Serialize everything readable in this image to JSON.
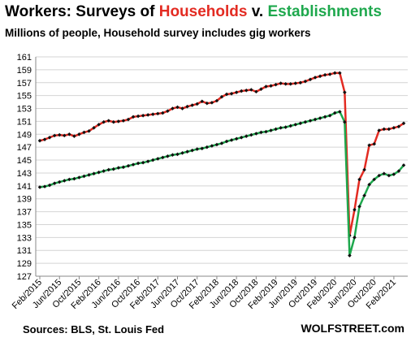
{
  "title": {
    "part1": "Workers: Surveys of ",
    "part2": "Households",
    "part3": " v. ",
    "part4": "Establishments"
  },
  "subtitle": "Millions of people, Household survey includes gig workers",
  "sources": "Sources: BLS, St. Louis Fed",
  "watermark": "WOLFSTREET.com",
  "colors": {
    "households": "#e32b22",
    "establishments": "#1ea84d",
    "title_red": "#e32b22",
    "title_green": "#1ea84d",
    "marker": "#111111",
    "grid": "#d4d4d4"
  },
  "chart_data": {
    "type": "line",
    "y_ticks": [
      127,
      129,
      131,
      133,
      135,
      137,
      139,
      141,
      143,
      145,
      147,
      149,
      151,
      153,
      155,
      157,
      159,
      161
    ],
    "ylim": [
      127,
      161
    ],
    "x_ticks": [
      {
        "label": "Feb/2015",
        "index": 0
      },
      {
        "label": "Jun/2015",
        "index": 4
      },
      {
        "label": "Oct/2015",
        "index": 8
      },
      {
        "label": "Feb/2016",
        "index": 12
      },
      {
        "label": "Jun/2016",
        "index": 16
      },
      {
        "label": "Oct/2016",
        "index": 20
      },
      {
        "label": "Feb/2017",
        "index": 24
      },
      {
        "label": "Jun/2017",
        "index": 28
      },
      {
        "label": "Oct/2017",
        "index": 32
      },
      {
        "label": "Feb/2018",
        "index": 36
      },
      {
        "label": "Jun/2018",
        "index": 40
      },
      {
        "label": "Oct/2018",
        "index": 44
      },
      {
        "label": "Feb/2019",
        "index": 48
      },
      {
        "label": "Jun/2019",
        "index": 52
      },
      {
        "label": "Oct/2019",
        "index": 56
      },
      {
        "label": "Feb/2020",
        "index": 60
      },
      {
        "label": "Jun/2020",
        "index": 64
      },
      {
        "label": "Oct/2020",
        "index": 68
      },
      {
        "label": "Feb/2021",
        "index": 72
      }
    ],
    "grid": "horizontal",
    "series": [
      {
        "name": "Households",
        "values": [
          148.0,
          148.2,
          148.5,
          148.8,
          148.9,
          148.8,
          149.0,
          148.7,
          149.0,
          149.3,
          149.5,
          150.0,
          150.5,
          150.9,
          151.1,
          150.9,
          151.0,
          151.1,
          151.3,
          151.7,
          151.8,
          151.9,
          152.0,
          152.1,
          152.2,
          152.3,
          152.6,
          153.0,
          153.2,
          153.0,
          153.3,
          153.5,
          153.7,
          154.1,
          153.8,
          153.9,
          154.2,
          154.8,
          155.2,
          155.3,
          155.5,
          155.7,
          155.8,
          155.9,
          155.6,
          156.0,
          156.4,
          156.5,
          156.7,
          156.9,
          156.8,
          156.8,
          156.9,
          157.0,
          157.2,
          157.5,
          157.8,
          158.0,
          158.2,
          158.3,
          158.5,
          158.5,
          155.5,
          133.3,
          137.3,
          142.0,
          143.5,
          147.3,
          147.5,
          149.6,
          149.8,
          149.8,
          150.0,
          150.2,
          150.7
        ]
      },
      {
        "name": "Establishments",
        "values": [
          140.8,
          140.9,
          141.1,
          141.4,
          141.6,
          141.8,
          142.0,
          142.1,
          142.3,
          142.5,
          142.7,
          142.9,
          143.1,
          143.3,
          143.5,
          143.6,
          143.8,
          143.9,
          144.1,
          144.3,
          144.5,
          144.6,
          144.8,
          145.0,
          145.2,
          145.4,
          145.6,
          145.8,
          145.9,
          146.1,
          146.3,
          146.5,
          146.7,
          146.8,
          147.0,
          147.2,
          147.4,
          147.6,
          147.9,
          148.1,
          148.3,
          148.5,
          148.7,
          148.9,
          149.1,
          149.3,
          149.4,
          149.6,
          149.8,
          150.0,
          150.1,
          150.3,
          150.5,
          150.7,
          150.9,
          151.1,
          151.3,
          151.5,
          151.7,
          151.9,
          152.3,
          152.5,
          150.9,
          130.2,
          133.0,
          137.8,
          139.5,
          141.2,
          142.0,
          142.6,
          142.9,
          142.6,
          142.8,
          143.3,
          144.2
        ]
      }
    ]
  }
}
